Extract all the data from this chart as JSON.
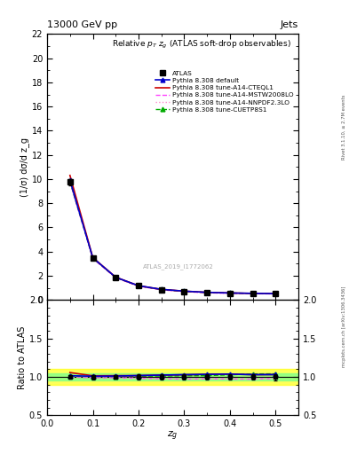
{
  "title_top": "13000 GeV pp",
  "title_right": "Jets",
  "plot_title": "Relative p_T z_g (ATLAS soft-drop observables)",
  "xlabel": "z_g",
  "ylabel_main": "(1/σ) dσ/d z_g",
  "ylabel_ratio": "Ratio to ATLAS",
  "watermark": "ATLAS_2019_I1772062",
  "right_label_top": "Rivet 3.1.10, ≥ 2.7M events",
  "right_label_bot": "mcplots.cern.ch [arXiv:1306.3436]",
  "xdata": [
    0.05,
    0.1,
    0.15,
    0.2,
    0.25,
    0.3,
    0.35,
    0.4,
    0.45,
    0.5
  ],
  "atlas_y": [
    9.75,
    3.45,
    1.85,
    1.15,
    0.85,
    0.7,
    0.6,
    0.55,
    0.52,
    0.5
  ],
  "atlas_yerr": [
    0.25,
    0.1,
    0.05,
    0.04,
    0.03,
    0.025,
    0.02,
    0.02,
    0.02,
    0.02
  ],
  "pythia_default_y": [
    9.9,
    3.48,
    1.87,
    1.17,
    0.87,
    0.72,
    0.62,
    0.57,
    0.535,
    0.515
  ],
  "pythia_cteql1_y": [
    10.3,
    3.5,
    1.88,
    1.17,
    0.87,
    0.72,
    0.62,
    0.57,
    0.535,
    0.515
  ],
  "pythia_mstw_y": [
    9.75,
    3.42,
    1.83,
    1.13,
    0.83,
    0.68,
    0.585,
    0.535,
    0.505,
    0.49
  ],
  "pythia_nnpdf_y": [
    9.75,
    3.42,
    1.83,
    1.13,
    0.83,
    0.68,
    0.585,
    0.535,
    0.505,
    0.49
  ],
  "pythia_cuetp_y": [
    9.82,
    3.47,
    1.86,
    1.16,
    0.86,
    0.71,
    0.61,
    0.565,
    0.54,
    0.52
  ],
  "color_atlas": "#000000",
  "color_default": "#0000cc",
  "color_cteql1": "#cc0000",
  "color_mstw": "#ff44ff",
  "color_nnpdf": "#ff88cc",
  "color_cuetp": "#00aa00",
  "ylim_main": [
    0,
    22
  ],
  "ylim_ratio": [
    0.5,
    2.0
  ],
  "xlim": [
    0.0,
    0.55
  ],
  "yticks_main": [
    0,
    2,
    4,
    6,
    8,
    10,
    12,
    14,
    16,
    18,
    20,
    22
  ],
  "yticks_ratio": [
    0.5,
    1.0,
    1.5,
    2.0
  ],
  "band_yellow": 0.1,
  "band_green": 0.05
}
